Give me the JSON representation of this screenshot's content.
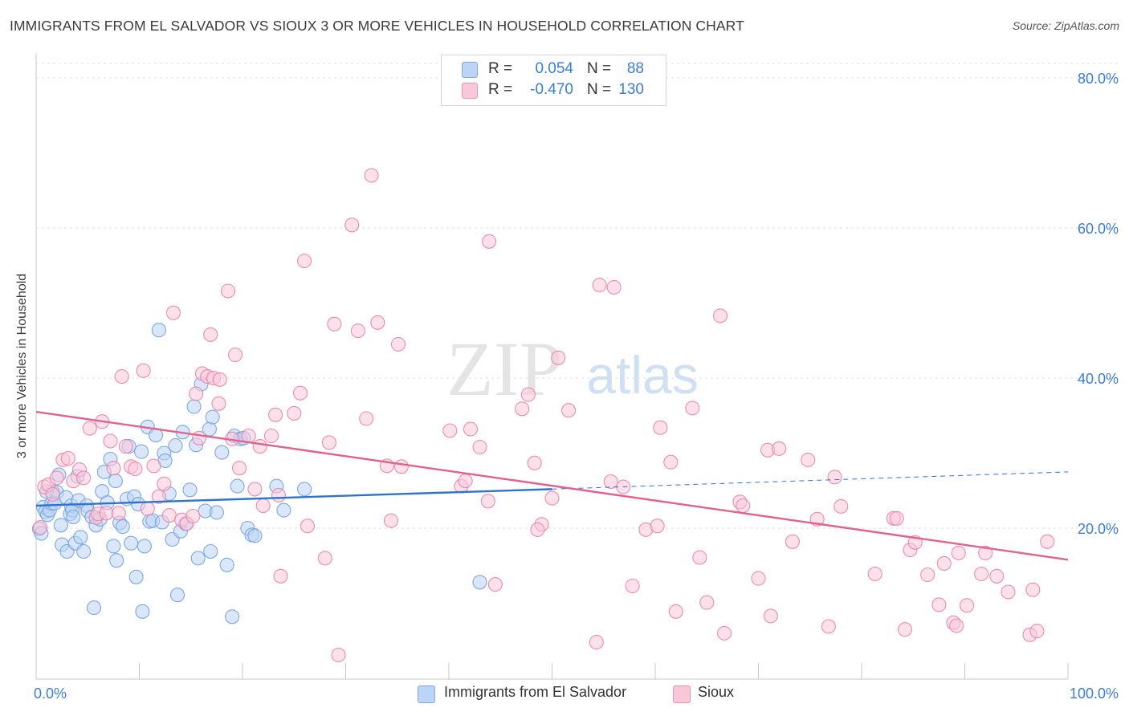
{
  "title": "IMMIGRANTS FROM EL SALVADOR VS SIOUX 3 OR MORE VEHICLES IN HOUSEHOLD CORRELATION CHART",
  "source": "Source: ZipAtlas.com",
  "watermark": {
    "zip": "ZIP",
    "atlas": "atlas"
  },
  "legend": {
    "rows": [
      {
        "r_label": "R =",
        "r_value": "0.054",
        "n_label": "N =",
        "n_value": "88",
        "color": "#bcd4f5"
      },
      {
        "r_label": "R =",
        "r_value": "-0.470",
        "n_label": "N =",
        "n_value": "130",
        "color": "#f9c8d8"
      }
    ]
  },
  "chart_data": {
    "type": "scatter",
    "title": "IMMIGRANTS FROM EL SALVADOR VS SIOUX 3 OR MORE VEHICLES IN HOUSEHOLD CORRELATION CHART",
    "xlabel": "",
    "ylabel": "3 or more Vehicles in Household",
    "xlim": [
      0,
      100
    ],
    "ylim": [
      0,
      80
    ],
    "x_tick_labels": [
      "0.0%",
      "100.0%"
    ],
    "y_tick_labels": [
      "20.0%",
      "40.0%",
      "60.0%",
      "80.0%"
    ],
    "y_ticks": [
      20,
      40,
      60,
      80
    ],
    "grid": true,
    "legend_position": "top-center",
    "series": [
      {
        "name": "Immigrants from El Salvador",
        "color": "#6fa0e0",
        "fill": "#bcd4f5",
        "trend": {
          "x0": 0,
          "y0": 23.0,
          "x1": 50,
          "y1": 25.2,
          "dashed_to_x": 100,
          "dashed_to_y": 27.5
        },
        "points": [
          [
            0.3,
            19.9
          ],
          [
            0.5,
            19.3
          ],
          [
            0.7,
            22.8
          ],
          [
            0.9,
            22.2
          ],
          [
            1.1,
            21.8
          ],
          [
            1.3,
            22.4
          ],
          [
            1.5,
            23.3
          ],
          [
            1.6,
            24.8
          ],
          [
            1.8,
            23.3
          ],
          [
            2.0,
            24.8
          ],
          [
            2.2,
            27.1
          ],
          [
            2.4,
            20.4
          ],
          [
            2.5,
            17.8
          ],
          [
            2.9,
            24.1
          ],
          [
            3.0,
            16.9
          ],
          [
            3.3,
            21.9
          ],
          [
            3.4,
            23.0
          ],
          [
            3.5,
            22.4
          ],
          [
            3.6,
            21.5
          ],
          [
            3.8,
            18.0
          ],
          [
            4.0,
            26.9
          ],
          [
            4.1,
            23.7
          ],
          [
            4.3,
            18.8
          ],
          [
            4.6,
            16.9
          ],
          [
            4.9,
            23.0
          ],
          [
            5.0,
            22.3
          ],
          [
            5.4,
            21.5
          ],
          [
            5.6,
            9.4
          ],
          [
            5.8,
            20.4
          ],
          [
            6.2,
            21.2
          ],
          [
            6.4,
            24.9
          ],
          [
            6.6,
            27.5
          ],
          [
            6.9,
            23.4
          ],
          [
            7.2,
            29.2
          ],
          [
            7.5,
            17.6
          ],
          [
            7.7,
            26.3
          ],
          [
            7.8,
            15.7
          ],
          [
            8.1,
            20.7
          ],
          [
            8.4,
            20.2
          ],
          [
            8.8,
            23.9
          ],
          [
            9.0,
            30.9
          ],
          [
            9.2,
            18.0
          ],
          [
            9.5,
            24.2
          ],
          [
            9.7,
            13.5
          ],
          [
            9.9,
            23.2
          ],
          [
            10.2,
            30.2
          ],
          [
            10.3,
            8.9
          ],
          [
            10.5,
            17.6
          ],
          [
            10.8,
            33.5
          ],
          [
            11.0,
            20.9
          ],
          [
            11.3,
            21.0
          ],
          [
            11.6,
            32.4
          ],
          [
            11.9,
            46.4
          ],
          [
            12.2,
            20.8
          ],
          [
            12.4,
            30.0
          ],
          [
            12.5,
            29.0
          ],
          [
            12.9,
            24.6
          ],
          [
            13.2,
            18.5
          ],
          [
            13.5,
            31.0
          ],
          [
            13.7,
            11.1
          ],
          [
            14.0,
            19.6
          ],
          [
            14.2,
            32.8
          ],
          [
            14.5,
            20.6
          ],
          [
            14.9,
            25.1
          ],
          [
            15.3,
            36.2
          ],
          [
            15.5,
            31.1
          ],
          [
            15.7,
            16.0
          ],
          [
            16.0,
            39.2
          ],
          [
            16.4,
            22.3
          ],
          [
            16.8,
            33.2
          ],
          [
            16.9,
            16.9
          ],
          [
            17.1,
            34.8
          ],
          [
            17.5,
            22.1
          ],
          [
            18.0,
            30.1
          ],
          [
            18.5,
            15.1
          ],
          [
            19.0,
            8.2
          ],
          [
            19.2,
            32.3
          ],
          [
            19.5,
            25.6
          ],
          [
            19.8,
            31.9
          ],
          [
            20.1,
            32.0
          ],
          [
            20.5,
            20.0
          ],
          [
            20.9,
            19.1
          ],
          [
            21.2,
            19.0
          ],
          [
            23.3,
            25.6
          ],
          [
            24.0,
            22.4
          ],
          [
            26.0,
            25.2
          ],
          [
            43.0,
            12.8
          ],
          [
            1.0,
            24.9
          ]
        ]
      },
      {
        "name": "Sioux",
        "color": "#ec7fa6",
        "fill": "#f9c8d8",
        "trend": {
          "x0": 0,
          "y0": 35.5,
          "x1": 100,
          "y1": 15.8
        },
        "points": [
          [
            0.4,
            20.1
          ],
          [
            0.8,
            25.5
          ],
          [
            1.2,
            25.8
          ],
          [
            1.6,
            24.5
          ],
          [
            2.0,
            26.7
          ],
          [
            2.6,
            29.1
          ],
          [
            3.1,
            29.3
          ],
          [
            3.6,
            26.3
          ],
          [
            4.2,
            27.8
          ],
          [
            4.6,
            26.7
          ],
          [
            5.2,
            33.3
          ],
          [
            5.8,
            21.4
          ],
          [
            6.0,
            21.9
          ],
          [
            6.4,
            34.2
          ],
          [
            6.8,
            22.0
          ],
          [
            7.2,
            31.6
          ],
          [
            7.5,
            28.0
          ],
          [
            8.0,
            22.0
          ],
          [
            8.3,
            40.2
          ],
          [
            8.7,
            30.9
          ],
          [
            9.2,
            28.2
          ],
          [
            9.6,
            27.9
          ],
          [
            10.4,
            41.0
          ],
          [
            10.8,
            22.6
          ],
          [
            11.4,
            28.3
          ],
          [
            11.9,
            24.2
          ],
          [
            12.4,
            25.9
          ],
          [
            12.9,
            21.7
          ],
          [
            13.3,
            48.7
          ],
          [
            14.1,
            21.1
          ],
          [
            14.6,
            20.6
          ],
          [
            15.2,
            21.6
          ],
          [
            15.5,
            37.9
          ],
          [
            15.8,
            32.0
          ],
          [
            16.1,
            40.6
          ],
          [
            16.6,
            40.2
          ],
          [
            16.9,
            45.8
          ],
          [
            17.2,
            40.0
          ],
          [
            17.7,
            36.6
          ],
          [
            17.8,
            39.8
          ],
          [
            18.6,
            51.6
          ],
          [
            19.0,
            31.9
          ],
          [
            19.3,
            43.1
          ],
          [
            19.7,
            28.0
          ],
          [
            20.6,
            32.3
          ],
          [
            21.2,
            25.2
          ],
          [
            21.7,
            30.9
          ],
          [
            22.0,
            23.0
          ],
          [
            22.8,
            32.3
          ],
          [
            23.2,
            35.1
          ],
          [
            23.5,
            24.4
          ],
          [
            23.7,
            13.6
          ],
          [
            25.0,
            35.3
          ],
          [
            25.6,
            38.0
          ],
          [
            26.0,
            55.6
          ],
          [
            26.3,
            20.3
          ],
          [
            28.0,
            16.0
          ],
          [
            28.4,
            31.4
          ],
          [
            28.9,
            47.2
          ],
          [
            29.3,
            3.1
          ],
          [
            30.6,
            60.4
          ],
          [
            31.2,
            46.3
          ],
          [
            32.0,
            34.6
          ],
          [
            32.5,
            67.0
          ],
          [
            33.1,
            47.4
          ],
          [
            34.0,
            28.3
          ],
          [
            34.4,
            21.0
          ],
          [
            35.1,
            44.5
          ],
          [
            35.4,
            28.2
          ],
          [
            40.1,
            33.0
          ],
          [
            41.2,
            25.6
          ],
          [
            41.6,
            26.3
          ],
          [
            42.1,
            33.2
          ],
          [
            43.0,
            30.8
          ],
          [
            43.8,
            23.6
          ],
          [
            43.9,
            58.2
          ],
          [
            44.5,
            12.5
          ],
          [
            47.1,
            35.9
          ],
          [
            47.7,
            37.8
          ],
          [
            48.3,
            28.7
          ],
          [
            49.0,
            20.5
          ],
          [
            50.0,
            24.0
          ],
          [
            48.6,
            19.8
          ],
          [
            50.6,
            42.7
          ],
          [
            51.6,
            35.7
          ],
          [
            54.3,
            4.8
          ],
          [
            54.6,
            52.4
          ],
          [
            55.7,
            26.2
          ],
          [
            56.0,
            52.1
          ],
          [
            56.9,
            25.5
          ],
          [
            57.8,
            12.3
          ],
          [
            59.1,
            19.8
          ],
          [
            60.2,
            20.3
          ],
          [
            60.5,
            33.4
          ],
          [
            61.5,
            28.8
          ],
          [
            62.0,
            8.9
          ],
          [
            63.6,
            36.0
          ],
          [
            64.3,
            16.1
          ],
          [
            65.0,
            10.1
          ],
          [
            66.3,
            48.3
          ],
          [
            66.7,
            6.0
          ],
          [
            68.2,
            23.5
          ],
          [
            68.5,
            23.0
          ],
          [
            70.0,
            13.3
          ],
          [
            70.9,
            30.4
          ],
          [
            71.2,
            8.3
          ],
          [
            72.0,
            30.6
          ],
          [
            73.3,
            18.2
          ],
          [
            74.8,
            29.1
          ],
          [
            75.7,
            21.2
          ],
          [
            76.8,
            6.9
          ],
          [
            77.4,
            26.8
          ],
          [
            78.0,
            22.9
          ],
          [
            81.3,
            13.9
          ],
          [
            83.1,
            21.3
          ],
          [
            83.4,
            21.3
          ],
          [
            84.2,
            6.5
          ],
          [
            84.7,
            17.1
          ],
          [
            85.2,
            18.1
          ],
          [
            86.4,
            13.8
          ],
          [
            87.5,
            9.8
          ],
          [
            88.0,
            15.3
          ],
          [
            88.9,
            7.4
          ],
          [
            89.2,
            7.0
          ],
          [
            89.4,
            16.7
          ],
          [
            90.2,
            9.7
          ],
          [
            91.6,
            13.9
          ],
          [
            92.0,
            16.7
          ],
          [
            93.1,
            13.6
          ],
          [
            94.2,
            11.5
          ],
          [
            96.3,
            5.8
          ],
          [
            96.6,
            11.8
          ],
          [
            97.0,
            6.3
          ],
          [
            98.0,
            18.2
          ]
        ]
      }
    ]
  },
  "bottom_legend": [
    {
      "label": "Immigrants from El Salvador"
    },
    {
      "label": "Sioux"
    }
  ]
}
